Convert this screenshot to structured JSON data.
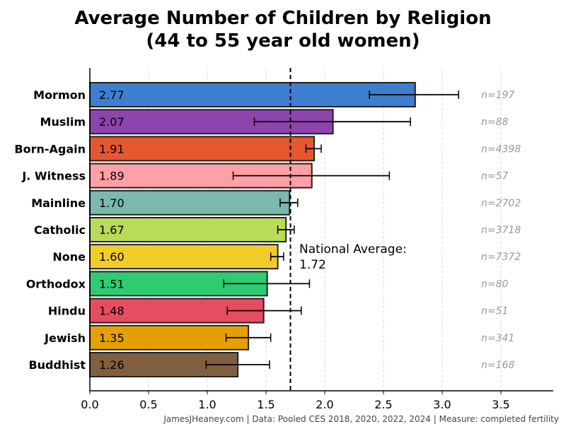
{
  "chart_data": {
    "type": "bar",
    "orientation": "horizontal",
    "title_line1": "Average Number of Children by Religion",
    "title_line2": "(44 to 55 year old women)",
    "xlabel": "",
    "ylabel": "",
    "xlim": [
      0,
      3.95
    ],
    "xticks": [
      "0.0",
      "0.5",
      "1.0",
      "1.5",
      "2.0",
      "2.5",
      "3.0",
      "3.5"
    ],
    "grid": "vertical dashed",
    "categories": [
      "Mormon",
      "Muslim",
      "Born-Again",
      "J. Witness",
      "Mainline",
      "Catholic",
      "None",
      "Orthodox",
      "Hindu",
      "Jewish",
      "Buddhist"
    ],
    "values": [
      2.77,
      2.07,
      1.91,
      1.89,
      1.7,
      1.67,
      1.6,
      1.51,
      1.48,
      1.35,
      1.26
    ],
    "value_labels": [
      "2.77",
      "2.07",
      "1.91",
      "1.89",
      "1.70",
      "1.67",
      "1.60",
      "1.51",
      "1.48",
      "1.35",
      "1.26"
    ],
    "ci_low": [
      2.38,
      1.4,
      1.84,
      1.22,
      1.62,
      1.6,
      1.54,
      1.14,
      1.17,
      1.16,
      0.99
    ],
    "ci_high": [
      3.14,
      2.73,
      1.97,
      2.55,
      1.77,
      1.74,
      1.65,
      1.87,
      1.8,
      1.54,
      1.53
    ],
    "n_labels": [
      "n=197",
      "n=88",
      "n=4398",
      "n=57",
      "n=2702",
      "n=3718",
      "n=7372",
      "n=80",
      "n=51",
      "n=341",
      "n=168"
    ],
    "colors": [
      "#3d7fce",
      "#8e44ad",
      "#e5572f",
      "#ff9fa6",
      "#7ab8b0",
      "#b8db5a",
      "#f2cd2a",
      "#2ecc71",
      "#e84c60",
      "#e5a000",
      "#7f5f40"
    ],
    "reference_line": {
      "value": 1.72,
      "label_line1": "National Average:",
      "label_line2": "1.72"
    },
    "footnote": "JamesJHeaney.com | Data: Pooled CES 2018, 2020, 2022, 2024 | Measure: completed fertility"
  }
}
